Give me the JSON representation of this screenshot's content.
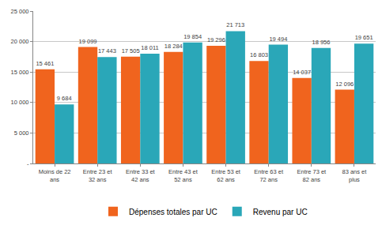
{
  "chart_data": {
    "type": "bar",
    "categories": [
      "Moins de 22 ans",
      "Entre 23 et 32 ans",
      "Entre 33 et 42 ans",
      "Entre 43 et 52 ans",
      "Entre 53 et 62 ans",
      "Entre 63 et 72 ans",
      "Entre 73 et 82 ans",
      "83 ans et plus"
    ],
    "series": [
      {
        "name": "Dépenses totales par UC",
        "color": "#f0641e",
        "values": [
          15461,
          19099,
          17505,
          18284,
          19296,
          16803,
          14037,
          12096
        ],
        "value_labels": [
          "15 461",
          "19 099",
          "17 505",
          "18 284",
          "19 296",
          "16 803",
          "14 037",
          "12 096"
        ]
      },
      {
        "name": "Revenu par UC",
        "color": "#2aa7b8",
        "values": [
          9684,
          17443,
          18011,
          19854,
          21713,
          19494,
          18956,
          19651
        ],
        "value_labels": [
          "9 684",
          "17 443",
          "18 011",
          "19 854",
          "21 713",
          "19 494",
          "18 956",
          "19 651"
        ]
      }
    ],
    "ylim": [
      0,
      25000
    ],
    "yticks": [
      {
        "value": 0,
        "label": "-"
      },
      {
        "value": 5000,
        "label": "5 000"
      },
      {
        "value": 10000,
        "label": "10 000"
      },
      {
        "value": 15000,
        "label": "15 000"
      },
      {
        "value": 20000,
        "label": "20 000"
      },
      {
        "value": 25000,
        "label": "25 000"
      }
    ],
    "grid": true,
    "legend": "bottom",
    "data_labels": true
  }
}
